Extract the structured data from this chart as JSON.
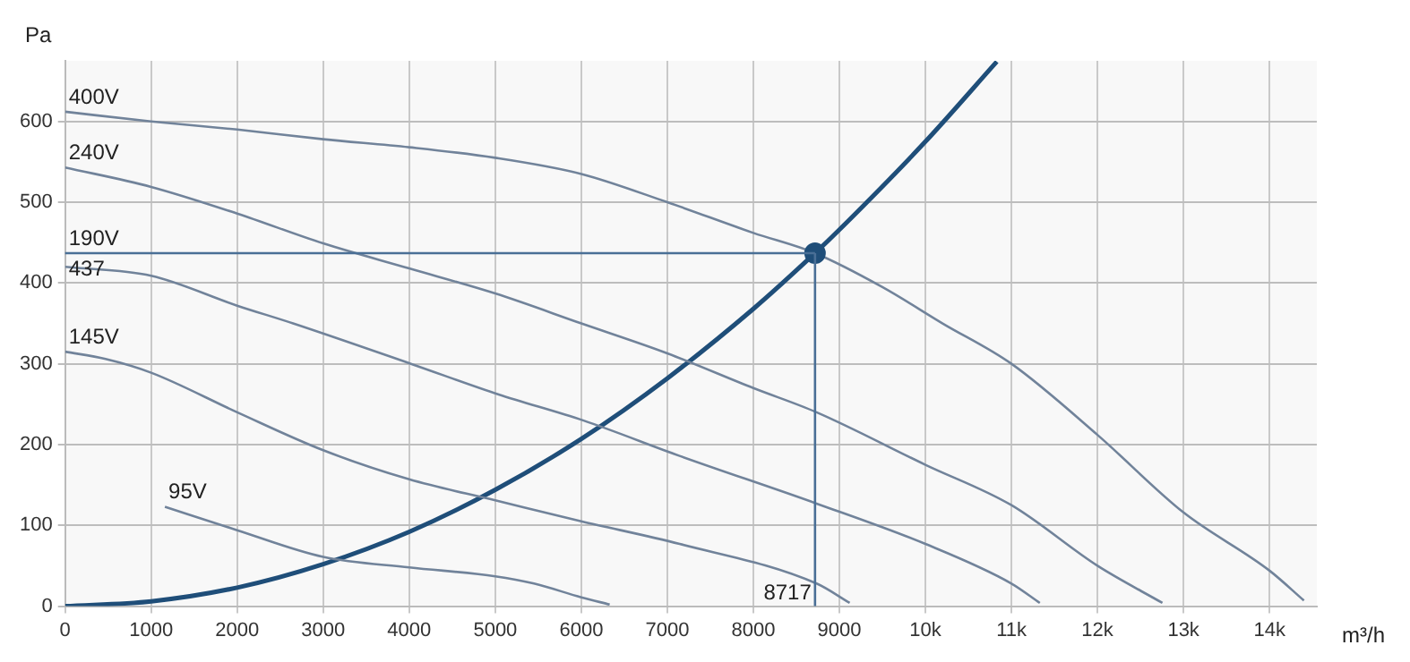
{
  "chart_data": {
    "type": "line",
    "xlabel": "m³/h",
    "ylabel": "Pa",
    "xlim": [
      0,
      14550
    ],
    "ylim": [
      0,
      675
    ],
    "xticks": [
      0,
      1000,
      2000,
      3000,
      4000,
      5000,
      6000,
      7000,
      8000,
      9000,
      {
        "value": 10000,
        "label": "10k"
      },
      {
        "value": 11000,
        "label": "11k"
      },
      {
        "value": 12000,
        "label": "12k"
      },
      {
        "value": 13000,
        "label": "13k"
      },
      {
        "value": 14000,
        "label": "14k"
      }
    ],
    "yticks": [
      0,
      100,
      200,
      300,
      400,
      500,
      600
    ],
    "grid": true,
    "legend": false,
    "marker": "none",
    "line_style": "solid",
    "series": [
      {
        "name": "400V",
        "color": "#71839a",
        "x": [
          0,
          1000,
          2000,
          3000,
          4000,
          5000,
          6000,
          7000,
          8000,
          8717,
          9500,
          10200,
          11000,
          12000,
          13000,
          14000,
          14400
        ],
        "values": [
          612,
          600,
          590,
          578,
          568,
          555,
          535,
          500,
          462,
          437,
          395,
          350,
          300,
          212,
          116,
          44,
          7
        ]
      },
      {
        "name": "240V",
        "color": "#71839a",
        "x": [
          0,
          1000,
          2000,
          3000,
          4000,
          5000,
          6000,
          7000,
          8000,
          8735,
          10000,
          11000,
          12000,
          12755
        ],
        "values": [
          543,
          519,
          486,
          449,
          418,
          387,
          350,
          313,
          270,
          240,
          175,
          125,
          50,
          4
        ]
      },
      {
        "name": "190V",
        "color": "#71839a",
        "x": [
          0,
          1000,
          2000,
          2650,
          4020,
          5040,
          6020,
          7143,
          8735,
          10000,
          11000,
          11330
        ],
        "values": [
          420,
          409,
          372,
          350,
          300,
          262,
          230,
          186,
          127,
          77,
          28,
          4
        ]
      },
      {
        "name": "145V",
        "color": "#71839a",
        "x": [
          0,
          470,
          1000,
          2000,
          3000,
          4000,
          5000,
          6000,
          7143,
          8735,
          9120
        ],
        "values": [
          315,
          306,
          289,
          240,
          193,
          157,
          131,
          105,
          77,
          28,
          4
        ]
      },
      {
        "name": "95V",
        "color": "#71839a",
        "x": [
          1160,
          2000,
          3000,
          4000,
          5000,
          5450,
          6000,
          6330
        ],
        "values": [
          123,
          94,
          61,
          48,
          37,
          28,
          11,
          2
        ]
      },
      {
        "color": "#1f4e79",
        "x": [
          0,
          1000,
          2000,
          3000,
          4000,
          5000,
          6000,
          7000,
          8000,
          8717,
          9000,
          10000,
          10830
        ],
        "values": [
          0,
          6,
          23,
          52,
          92,
          144,
          207,
          282,
          368,
          437,
          466,
          575,
          674
        ]
      },
      {
        "type": "scatter",
        "marker": "circle",
        "color": "#1f4e79",
        "x": [
          8717
        ],
        "values": [
          437
        ]
      }
    ],
    "ref_lines": [
      {
        "axis": "y",
        "value": 437,
        "label": "437",
        "color": "#4a6f96"
      },
      {
        "axis": "x",
        "value": 8717,
        "label": "8717",
        "color": "#4a6f96"
      }
    ]
  }
}
